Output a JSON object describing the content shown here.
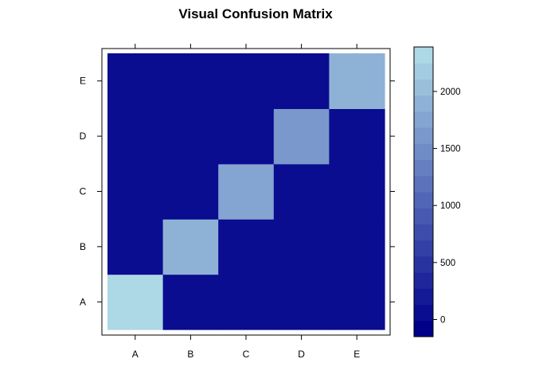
{
  "chart_data": {
    "type": "heatmap",
    "title": "Visual Confusion Matrix",
    "xlabel": "",
    "ylabel": "",
    "x_categories": [
      "A",
      "B",
      "C",
      "D",
      "E"
    ],
    "y_categories": [
      "A",
      "B",
      "C",
      "D",
      "E"
    ],
    "cells": [
      {
        "x": "A",
        "y": "A",
        "value": 2390
      },
      {
        "x": "B",
        "y": "A",
        "value": 0
      },
      {
        "x": "C",
        "y": "A",
        "value": 0
      },
      {
        "x": "D",
        "y": "A",
        "value": 0
      },
      {
        "x": "E",
        "y": "A",
        "value": 0
      },
      {
        "x": "A",
        "y": "B",
        "value": 100
      },
      {
        "x": "B",
        "y": "B",
        "value": 1920
      },
      {
        "x": "C",
        "y": "B",
        "value": 100
      },
      {
        "x": "D",
        "y": "B",
        "value": 0
      },
      {
        "x": "E",
        "y": "B",
        "value": 0
      },
      {
        "x": "A",
        "y": "C",
        "value": 0
      },
      {
        "x": "B",
        "y": "C",
        "value": 100
      },
      {
        "x": "C",
        "y": "C",
        "value": 1700
      },
      {
        "x": "D",
        "y": "C",
        "value": 100
      },
      {
        "x": "E",
        "y": "C",
        "value": 0
      },
      {
        "x": "A",
        "y": "D",
        "value": 0
      },
      {
        "x": "B",
        "y": "D",
        "value": 0
      },
      {
        "x": "C",
        "y": "D",
        "value": 100
      },
      {
        "x": "D",
        "y": "D",
        "value": 1550
      },
      {
        "x": "E",
        "y": "D",
        "value": 0
      },
      {
        "x": "A",
        "y": "E",
        "value": 0
      },
      {
        "x": "B",
        "y": "E",
        "value": 0
      },
      {
        "x": "C",
        "y": "E",
        "value": 100
      },
      {
        "x": "D",
        "y": "E",
        "value": 100
      },
      {
        "x": "E",
        "y": "E",
        "value": 1900
      }
    ],
    "colorbar": {
      "range": [
        -150,
        2390
      ],
      "ticks": [
        0,
        500,
        1000,
        1500,
        2000
      ],
      "tick_labels": [
        "0",
        "500",
        "1000",
        "1500",
        "2000"
      ],
      "low_color": "#00008b",
      "high_color": "#add8e6",
      "steps": 18
    },
    "grid": false,
    "legend_position": "right"
  }
}
